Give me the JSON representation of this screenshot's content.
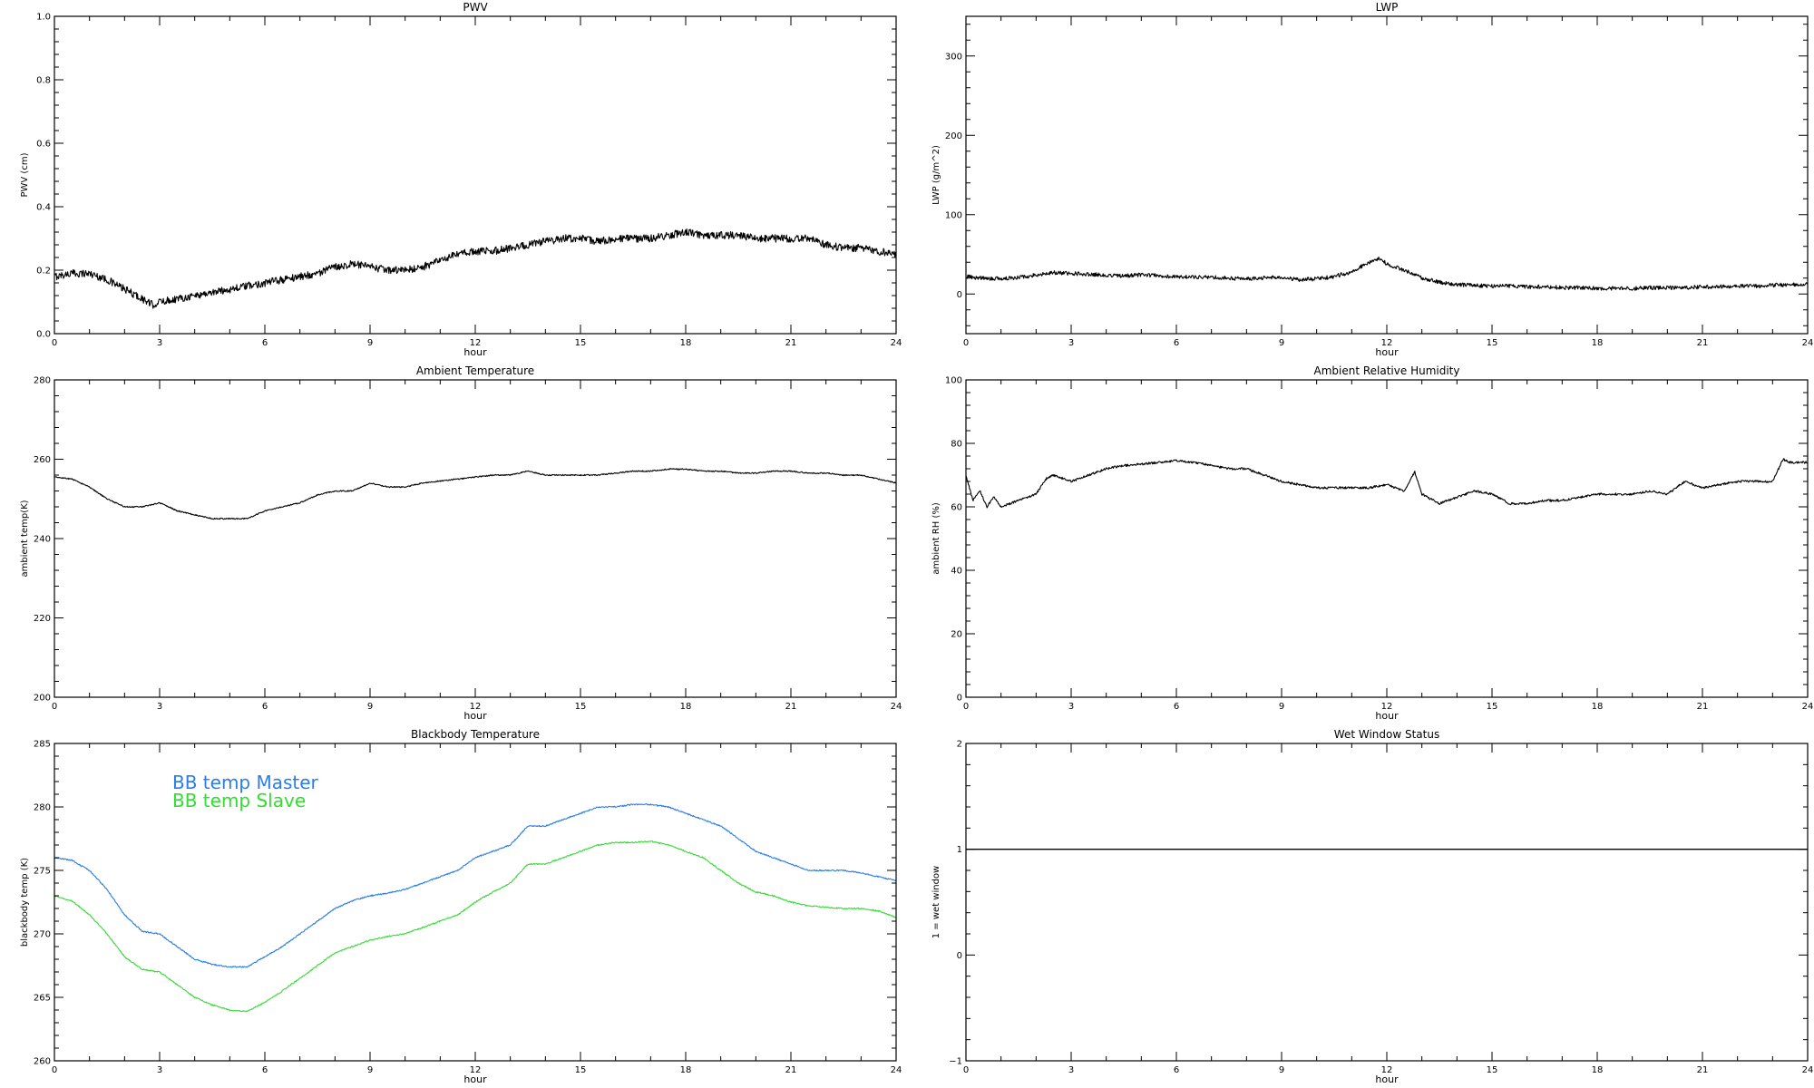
{
  "chart_data": [
    {
      "id": "pwv",
      "type": "line",
      "title": "PWV",
      "xlabel": "hour",
      "ylabel": "PWV (cm)",
      "xlim": [
        0,
        24
      ],
      "ylim": [
        0.0,
        1.0
      ],
      "xticks": [
        0,
        3,
        6,
        9,
        12,
        15,
        18,
        21,
        24
      ],
      "yticks": [
        0.0,
        0.2,
        0.4,
        0.6,
        0.8,
        1.0
      ],
      "ytick_labels": [
        "0.0",
        "0.2",
        "0.4",
        "0.6",
        "0.8",
        "1.0"
      ],
      "grid": false,
      "series": [
        {
          "color": "#000000",
          "noise": 0.012,
          "x": [
            0,
            0.5,
            1,
            1.5,
            2,
            2.5,
            2.8,
            3,
            3.5,
            4,
            4.5,
            5,
            5.5,
            6,
            6.5,
            7,
            7.5,
            8,
            8.5,
            9,
            9.5,
            10,
            10.5,
            11,
            11.5,
            12,
            12.5,
            13,
            13.5,
            14,
            14.5,
            15,
            15.5,
            16,
            16.5,
            17,
            17.5,
            18,
            18.5,
            19,
            19.5,
            20,
            20.5,
            21,
            21.5,
            22,
            22.5,
            23,
            23.5,
            24
          ],
          "y": [
            0.18,
            0.19,
            0.19,
            0.17,
            0.14,
            0.11,
            0.09,
            0.1,
            0.11,
            0.12,
            0.13,
            0.14,
            0.15,
            0.16,
            0.17,
            0.18,
            0.19,
            0.21,
            0.22,
            0.21,
            0.2,
            0.2,
            0.21,
            0.23,
            0.25,
            0.26,
            0.26,
            0.27,
            0.28,
            0.29,
            0.3,
            0.3,
            0.29,
            0.3,
            0.3,
            0.3,
            0.31,
            0.32,
            0.31,
            0.31,
            0.31,
            0.3,
            0.3,
            0.3,
            0.3,
            0.28,
            0.27,
            0.27,
            0.26,
            0.25
          ]
        }
      ]
    },
    {
      "id": "lwp",
      "type": "line",
      "title": "LWP",
      "xlabel": "hour",
      "ylabel": "LWP (g/m^2)",
      "xlim": [
        0,
        24
      ],
      "ylim": [
        -50,
        350
      ],
      "xticks": [
        0,
        3,
        6,
        9,
        12,
        15,
        18,
        21,
        24
      ],
      "yticks": [
        0,
        100,
        200,
        300
      ],
      "ytick_labels": [
        "0",
        "100",
        "200",
        "300"
      ],
      "grid": false,
      "series": [
        {
          "color": "#000000",
          "noise": 2.5,
          "x": [
            0,
            0.5,
            1,
            1.5,
            2,
            2.5,
            3,
            3.5,
            4,
            4.5,
            5,
            5.5,
            6,
            6.5,
            7,
            7.5,
            8,
            8.5,
            9,
            9.5,
            10,
            10.5,
            11,
            11.5,
            11.8,
            12,
            12.5,
            13,
            13.5,
            14,
            14.5,
            15,
            15.5,
            16,
            16.5,
            17,
            17.5,
            18,
            18.5,
            19,
            19.5,
            20,
            20.5,
            21,
            21.5,
            22,
            22.5,
            23,
            23.5,
            24
          ],
          "y": [
            22,
            20,
            19,
            21,
            24,
            27,
            26,
            25,
            24,
            23,
            24,
            23,
            22,
            21,
            21,
            20,
            19,
            20,
            21,
            18,
            19,
            22,
            28,
            40,
            45,
            38,
            30,
            20,
            15,
            12,
            11,
            10,
            10,
            9,
            9,
            8,
            8,
            7,
            7,
            7,
            8,
            8,
            8,
            9,
            9,
            10,
            10,
            11,
            12,
            13
          ]
        }
      ]
    },
    {
      "id": "ambient-temperature",
      "type": "line",
      "title": "Ambient Temperature",
      "xlabel": "hour",
      "ylabel": "ambient temp(K)",
      "xlim": [
        0,
        24
      ],
      "ylim": [
        200,
        280
      ],
      "xticks": [
        0,
        3,
        6,
        9,
        12,
        15,
        18,
        21,
        24
      ],
      "yticks": [
        200,
        220,
        240,
        260,
        280
      ],
      "ytick_labels": [
        "200",
        "220",
        "240",
        "260",
        "280"
      ],
      "grid": false,
      "series": [
        {
          "color": "#000000",
          "noise": 0.15,
          "x": [
            0,
            0.5,
            1,
            1.5,
            2,
            2.5,
            3,
            3.5,
            4,
            4.5,
            5,
            5.5,
            6,
            6.5,
            7,
            7.5,
            8,
            8.5,
            9,
            9.5,
            10,
            10.5,
            11,
            11.5,
            12,
            12.5,
            13,
            13.5,
            14,
            14.5,
            15,
            15.5,
            16,
            16.5,
            17,
            17.5,
            18,
            18.5,
            19,
            19.5,
            20,
            20.5,
            21,
            21.5,
            22,
            22.5,
            23,
            23.5,
            24
          ],
          "y": [
            255.5,
            255,
            253,
            250,
            248,
            248,
            249,
            247,
            246,
            245,
            245,
            245,
            247,
            248,
            249,
            251,
            252,
            252,
            254,
            253,
            253,
            254,
            254.5,
            255,
            255.5,
            256,
            256,
            257,
            256,
            256,
            256,
            256,
            256.5,
            257,
            257,
            257.5,
            257.5,
            257,
            257,
            256.5,
            256.5,
            257,
            257,
            256.5,
            256.5,
            256,
            256,
            255,
            254
          ]
        }
      ]
    },
    {
      "id": "ambient-relative-humidity",
      "type": "line",
      "title": "Ambient Relative Humidity",
      "xlabel": "hour",
      "ylabel": "ambient RH (%)",
      "xlim": [
        0,
        24
      ],
      "ylim": [
        0,
        100
      ],
      "xticks": [
        0,
        3,
        6,
        9,
        12,
        15,
        18,
        21,
        24
      ],
      "yticks": [
        0,
        20,
        40,
        60,
        80,
        100
      ],
      "ytick_labels": [
        "0",
        "20",
        "40",
        "60",
        "80",
        "100"
      ],
      "grid": false,
      "series": [
        {
          "color": "#000000",
          "noise": 0.35,
          "x": [
            0,
            0.2,
            0.4,
            0.6,
            0.8,
            1,
            1.5,
            2,
            2.3,
            2.5,
            3,
            3.5,
            4,
            4.5,
            5,
            5.5,
            6,
            6.5,
            7,
            7.5,
            8,
            8.5,
            9,
            9.5,
            10,
            10.5,
            11,
            11.5,
            12,
            12.5,
            12.8,
            13,
            13.5,
            14,
            14.5,
            15,
            15.5,
            16,
            16.5,
            17,
            17.5,
            18,
            18.5,
            19,
            19.5,
            20,
            20.5,
            21,
            21.5,
            22,
            22.5,
            23,
            23.3,
            23.5,
            24
          ],
          "y": [
            70,
            62,
            65,
            60,
            63,
            60,
            62,
            64,
            69,
            70,
            68,
            70,
            72,
            73,
            73.5,
            74,
            74.5,
            74,
            73,
            72,
            72,
            70,
            68,
            67,
            66,
            66,
            66,
            66,
            67,
            65,
            71,
            64,
            61,
            63,
            65,
            64,
            61,
            61,
            62,
            62,
            63,
            64,
            64,
            64,
            65,
            64,
            68,
            66,
            67,
            68,
            68,
            68,
            75,
            74,
            74
          ]
        }
      ]
    },
    {
      "id": "blackbody-temperature",
      "type": "line",
      "title": "Blackbody Temperature",
      "xlabel": "hour",
      "ylabel": "blackbody temp (K)",
      "xlim": [
        0,
        24
      ],
      "ylim": [
        260,
        285
      ],
      "xticks": [
        0,
        3,
        6,
        9,
        12,
        15,
        18,
        21,
        24
      ],
      "yticks": [
        260,
        265,
        270,
        275,
        280,
        285
      ],
      "ytick_labels": [
        "260",
        "265",
        "270",
        "275",
        "280",
        "285"
      ],
      "grid": false,
      "legend_position": "top-left",
      "series": [
        {
          "name": "BB temp Master",
          "color": "#2b7de9",
          "noise": 0.05,
          "x": [
            0,
            0.5,
            1,
            1.5,
            2,
            2.5,
            3,
            3.5,
            4,
            4.5,
            5,
            5.5,
            6,
            6.5,
            7,
            7.5,
            8,
            8.5,
            9,
            9.5,
            10,
            10.5,
            11,
            11.5,
            12,
            12.5,
            13,
            13.5,
            14,
            14.5,
            15,
            15.5,
            16,
            16.5,
            17,
            17.5,
            18,
            18.5,
            19,
            19.5,
            20,
            20.5,
            21,
            21.5,
            22,
            22.5,
            23,
            23.5,
            24
          ],
          "y": [
            276,
            275.8,
            275,
            273.5,
            271.5,
            270.2,
            270,
            269,
            268,
            267.6,
            267.4,
            267.4,
            268.2,
            269,
            270,
            271,
            272,
            272.6,
            273,
            273.2,
            273.5,
            274,
            274.5,
            275,
            276,
            276.5,
            277,
            278.5,
            278.5,
            279,
            279.5,
            280,
            280,
            280.2,
            280.2,
            280,
            279.5,
            279,
            278.5,
            277.5,
            276.5,
            276,
            275.5,
            275,
            275,
            275,
            274.8,
            274.5,
            274.2
          ]
        },
        {
          "name": "BB temp Slave",
          "color": "#33dd33",
          "noise": 0.05,
          "x": [
            0,
            0.5,
            1,
            1.5,
            2,
            2.5,
            3,
            3.5,
            4,
            4.5,
            5,
            5.5,
            6,
            6.5,
            7,
            7.5,
            8,
            8.5,
            9,
            9.5,
            10,
            10.5,
            11,
            11.5,
            12,
            12.5,
            13,
            13.5,
            14,
            14.5,
            15,
            15.5,
            16,
            16.5,
            17,
            17.5,
            18,
            18.5,
            19,
            19.5,
            20,
            20.5,
            21,
            21.5,
            22,
            22.5,
            23,
            23.5,
            24
          ],
          "y": [
            273,
            272.6,
            271.5,
            270,
            268.2,
            267.2,
            267,
            266,
            265,
            264.4,
            264,
            263.9,
            264.6,
            265.5,
            266.5,
            267.5,
            268.5,
            269,
            269.5,
            269.8,
            270,
            270.5,
            271,
            271.5,
            272.5,
            273.3,
            274,
            275.5,
            275.5,
            276,
            276.5,
            277,
            277.2,
            277.2,
            277.3,
            277,
            276.5,
            276,
            275,
            274,
            273.3,
            273,
            272.5,
            272.2,
            272.1,
            272,
            272,
            271.8,
            271.3
          ]
        }
      ]
    },
    {
      "id": "wet-window-status",
      "type": "line",
      "title": "Wet Window Status",
      "xlabel": "hour",
      "ylabel": "1 = wet window",
      "xlim": [
        0,
        24
      ],
      "ylim": [
        -1,
        2
      ],
      "xticks": [
        0,
        3,
        6,
        9,
        12,
        15,
        18,
        21,
        24
      ],
      "yticks": [
        -1,
        0,
        1,
        2
      ],
      "ytick_labels": [
        "−1",
        "0",
        "1",
        "2"
      ],
      "grid": false,
      "series": [
        {
          "color": "#000000",
          "noise": 0,
          "x": [
            0,
            24
          ],
          "y": [
            1,
            1
          ]
        }
      ]
    }
  ]
}
